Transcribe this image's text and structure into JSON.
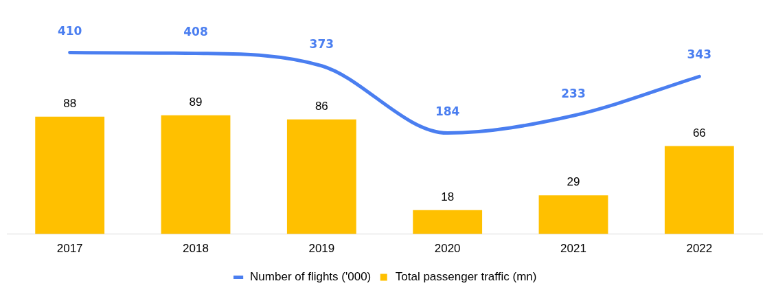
{
  "chart_data": {
    "type": "bar",
    "categories": [
      "2017",
      "2018",
      "2019",
      "2020",
      "2021",
      "2022"
    ],
    "series": [
      {
        "name": "Total passenger traffic (mn)",
        "color": "#ffc000",
        "values": [
          88,
          89,
          86,
          18,
          29,
          66
        ]
      },
      {
        "name": "Number of flights ('000)",
        "type": "line",
        "axis": "y2",
        "color": "#4a7ef0",
        "values": [
          410,
          408,
          373,
          184,
          233,
          343
        ]
      }
    ],
    "data_labels": true,
    "legend": "bottom",
    "marker": "none",
    "line_style": "solid",
    "grid": false,
    "tick_labels": "x"
  }
}
